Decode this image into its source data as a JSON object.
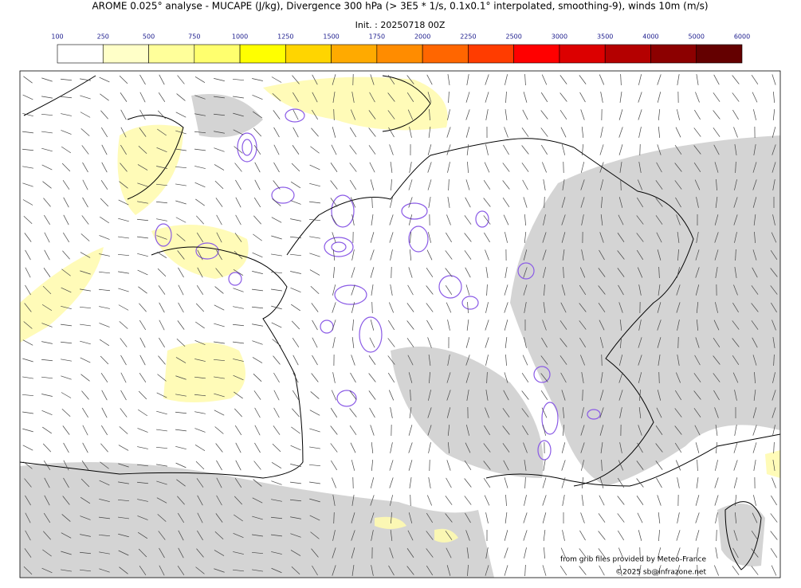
{
  "title": "AROME 0.025° analyse - MUCAPE (J/kg), Divergence 300 hPa (> 3E5 * 1/s, 0.1x0.1° interpolated, smoothing-9), winds 10m (m/s)",
  "subtitle": "Init. : 20250718 00Z",
  "colorbar": {
    "ticks": [
      100,
      250,
      500,
      750,
      1000,
      1250,
      1500,
      1750,
      2000,
      2250,
      2500,
      3000,
      3500,
      4000,
      5000,
      6000
    ],
    "colors": [
      "#ffffff",
      "#ffffc8",
      "#ffff9a",
      "#ffff6e",
      "#ffff00",
      "#ffd500",
      "#ffaa00",
      "#ff8c00",
      "#ff6600",
      "#ff3c00",
      "#ff0000",
      "#dc0000",
      "#b40000",
      "#8c0000",
      "#640000"
    ]
  },
  "credits": [
    "from grib files provided by Meteo-France",
    "©2025 sb@infrazone.net"
  ]
}
